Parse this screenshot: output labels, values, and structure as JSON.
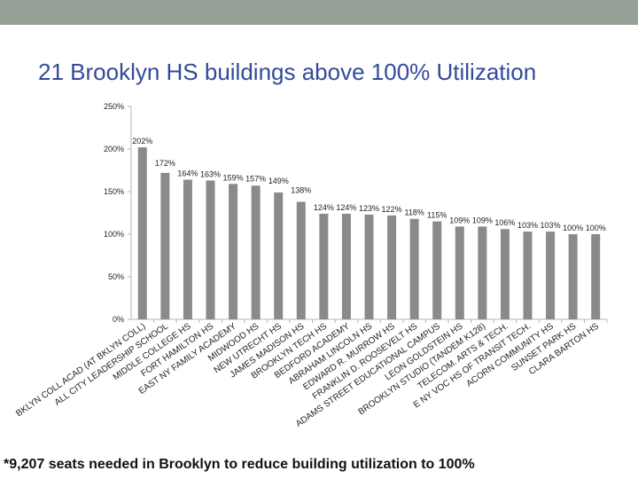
{
  "title": "21 Brooklyn HS buildings above 100% Utilization",
  "footnote": "*9,207 seats needed in Brooklyn to reduce building utilization to 100%",
  "colors": {
    "top_band": "#95a096",
    "title": "#334a9a",
    "bar": "#8a8a8a",
    "axis": "#b5b5b5",
    "text": "#222222"
  },
  "chart_data": {
    "type": "bar",
    "title": "21 Brooklyn HS buildings above 100% Utilization",
    "xlabel": "",
    "ylabel": "",
    "ylim": [
      0,
      250
    ],
    "yticks": [
      "0%",
      "50%",
      "100%",
      "150%",
      "200%",
      "250%"
    ],
    "grid": false,
    "categories": [
      "BKLYN COLL ACAD (AT BKLYN COLL)",
      "ALL CITY LEADERSHIP SCHOOL",
      "MIDDLE COLLEGE HS",
      "FORT HAMILTON HS",
      "EAST NY FAMILY ACADEMY",
      "MIDWOOD HS",
      "NEW UTRECHT HS",
      "JAMES MADISON HS",
      "BROOKLYN TECH HS",
      "BEDFORD ACADEMY",
      "ABRAHAM LINCOLN HS",
      "EDWARD R. MURROW HS",
      "FRANKLIN D. ROOSEVELT HS",
      "ADAMS STREET EDUCATIONAL CAMPUS",
      "LEON GOLDSTEIN HS",
      "BROOKLYN STUDIO (TANDEM K128)",
      "TELECOM. ARTS & TECH.",
      "E NY VOC HS OF TRANSIT TECH.",
      "ACORN COMMUNITY HS",
      "SUNSET PARK HS",
      "CLARA BARTON HS"
    ],
    "values": [
      202,
      172,
      164,
      163,
      159,
      157,
      149,
      138,
      124,
      124,
      123,
      122,
      118,
      115,
      109,
      109,
      106,
      103,
      103,
      100,
      100
    ],
    "value_labels": [
      "202%",
      "172%",
      "164%",
      "163%",
      "159%",
      "157%",
      "149%",
      "138%",
      "124%",
      "124%",
      "123%",
      "122%",
      "118%",
      "115%",
      "109%",
      "109%",
      "106%",
      "103%",
      "103%",
      "100%",
      "100%"
    ]
  }
}
